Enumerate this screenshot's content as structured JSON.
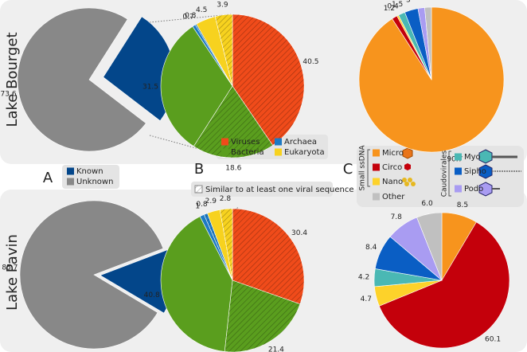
{
  "row_labels": [
    "Lake Bourget",
    "Lake Pavin"
  ],
  "panel_labels": [
    "A",
    "B",
    "C"
  ],
  "legends": [
    {
      "entries": [
        {
          "name": "Known",
          "color": "#03468a"
        },
        {
          "name": "Unknown",
          "color": "#888888"
        }
      ]
    },
    {
      "entries": [
        {
          "name": "Viruses",
          "color": "#f04b1a"
        },
        {
          "name": "Archaea",
          "color": "#1d7ac4"
        },
        {
          "name": "Bacteria",
          "color": "#5a9e1e"
        },
        {
          "name": "Eukaryota",
          "color": "#f7d21f"
        }
      ],
      "hatch_note": "Similar to at least one viral sequence"
    },
    {
      "groups": [
        {
          "name": "Small ssDNA",
          "entries": [
            {
              "name": "Micro",
              "color": "#f7941d"
            },
            {
              "name": "Circo",
              "color": "#c4000b"
            },
            {
              "name": "Nano",
              "color": "#fdd22a"
            }
          ]
        },
        {
          "name": "Caudovirales",
          "entries": [
            {
              "name": "Myo",
              "color": "#4ab8b4"
            },
            {
              "name": "Sipho",
              "color": "#0a5ec4"
            },
            {
              "name": "Podo",
              "color": "#a99cf2"
            }
          ]
        }
      ],
      "other": {
        "name": "Other",
        "color": "#c0c0c0"
      }
    }
  ],
  "chart_data": [
    {
      "type": "pie",
      "values": [
        73.6,
        26.4
      ],
      "colors": [
        "#888888",
        "#03468a"
      ],
      "exploded": [
        false,
        true
      ]
    },
    {
      "type": "pie",
      "values": [
        85.7,
        14.3
      ],
      "colors": [
        "#888888",
        "#03468a"
      ],
      "exploded": [
        false,
        true
      ]
    },
    {
      "type": "pie",
      "values": [
        40.5,
        18.6,
        31.5,
        0.7,
        0.3,
        4.5,
        3.9
      ],
      "colors": [
        "#f04b1a",
        "#5a9e1e",
        "#5a9e1e",
        "#1d7ac4",
        "#1d7ac4",
        "#f7d21f",
        "#f7d21f"
      ],
      "hatched": [
        true,
        true,
        false,
        false,
        true,
        false,
        true
      ]
    },
    {
      "type": "pie",
      "values": [
        30.4,
        21.4,
        40.8,
        1,
        0.8,
        2.9,
        2.8
      ],
      "colors": [
        "#f04b1a",
        "#5a9e1e",
        "#5a9e1e",
        "#1d7ac4",
        "#1d7ac4",
        "#f7d21f",
        "#f7d21f"
      ],
      "hatched": [
        true,
        true,
        false,
        false,
        true,
        false,
        true
      ]
    },
    {
      "type": "pie",
      "values": [
        90.7,
        1.2,
        0.4,
        1.5,
        3,
        1.5,
        1.5
      ],
      "colors": [
        "#f7941d",
        "#c4000b",
        "#fdd22a",
        "#4ab8b4",
        "#0a5ec4",
        "#a99cf2",
        "#c0c0c0"
      ]
    },
    {
      "type": "pie",
      "values": [
        8.5,
        60.1,
        4.7,
        4.2,
        8.4,
        7.8,
        6
      ],
      "value_labels": [
        "8.5",
        "60.1",
        "4.7",
        "4.2",
        "8.4",
        "7.8",
        "6.0"
      ],
      "colors": [
        "#f7941d",
        "#c4000b",
        "#fdd22a",
        "#4ab8b4",
        "#0a5ec4",
        "#a99cf2",
        "#c0c0c0"
      ]
    }
  ]
}
